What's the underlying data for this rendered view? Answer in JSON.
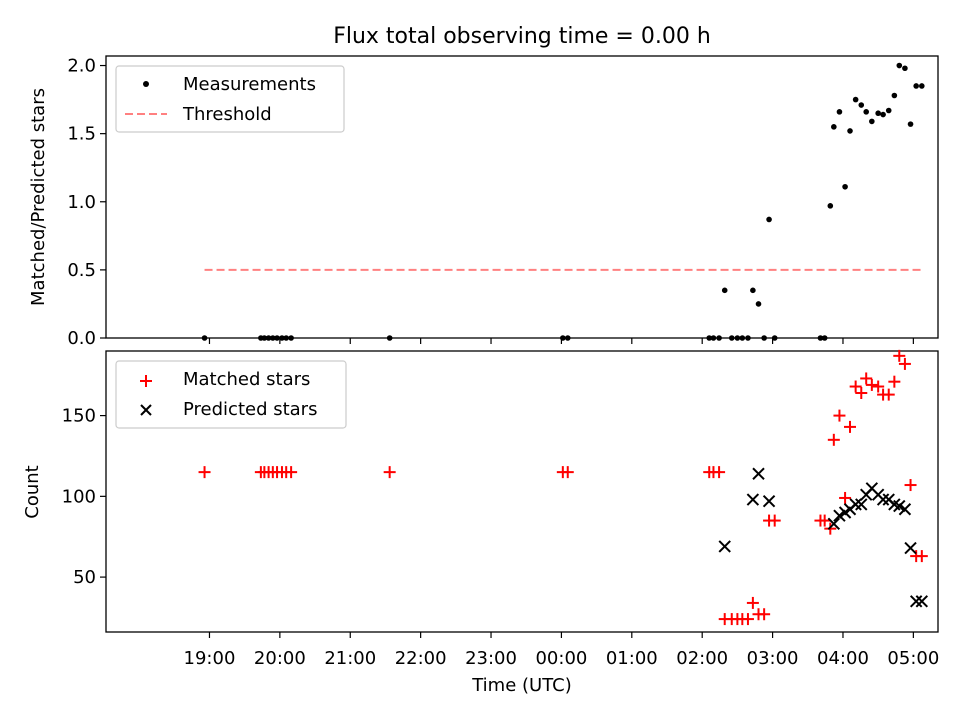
{
  "chart_data": {
    "type": "scatter",
    "title": "Flux total observing time = 0.00 h",
    "xlabel": "Time (UTC)",
    "x_unit": "hours since 18:00 UTC",
    "xlim": [
      -0.47,
      11.35
    ],
    "xticks": [
      {
        "value": 1,
        "label": "19:00"
      },
      {
        "value": 2,
        "label": "20:00"
      },
      {
        "value": 3,
        "label": "21:00"
      },
      {
        "value": 4,
        "label": "22:00"
      },
      {
        "value": 5,
        "label": "23:00"
      },
      {
        "value": 6,
        "label": "00:00"
      },
      {
        "value": 7,
        "label": "01:00"
      },
      {
        "value": 8,
        "label": "02:00"
      },
      {
        "value": 9,
        "label": "03:00"
      },
      {
        "value": 10,
        "label": "04:00"
      },
      {
        "value": 11,
        "label": "05:00"
      }
    ],
    "panels": [
      {
        "ylabel": "Matched/Predicted stars",
        "ylim": [
          0,
          2.07
        ],
        "yticks": [
          {
            "value": 0.0,
            "label": "0.0"
          },
          {
            "value": 0.5,
            "label": "0.5"
          },
          {
            "value": 1.0,
            "label": "1.0"
          },
          {
            "value": 1.5,
            "label": "1.5"
          },
          {
            "value": 2.0,
            "label": "2.0"
          }
        ],
        "legend_position": "top-left",
        "series": [
          {
            "name": "Measurements",
            "marker": "dot",
            "color": "#000000",
            "x": [
              0.93,
              1.73,
              1.78,
              1.84,
              1.9,
              1.96,
              2.03,
              2.09,
              2.16,
              3.56,
              6.02,
              6.09,
              8.1,
              8.16,
              8.24,
              8.32,
              8.42,
              8.5,
              8.57,
              8.65,
              8.72,
              8.8,
              8.88,
              8.95,
              9.03,
              9.68,
              9.74,
              9.82,
              9.87,
              9.95,
              10.03,
              10.1,
              10.18,
              10.26,
              10.33,
              10.41,
              10.5,
              10.57,
              10.65,
              10.73,
              10.8,
              10.88,
              10.96,
              11.04,
              11.12
            ],
            "y": [
              0.0,
              0.0,
              0.0,
              0.0,
              0.0,
              0.0,
              0.0,
              0.0,
              0.0,
              0.0,
              0.0,
              0.0,
              0.0,
              0.0,
              0.0,
              0.35,
              0.0,
              0.0,
              0.0,
              0.0,
              0.35,
              0.25,
              0.0,
              0.87,
              0.0,
              0.0,
              0.0,
              0.97,
              1.55,
              1.66,
              1.11,
              1.52,
              1.75,
              1.71,
              1.66,
              1.59,
              1.65,
              1.64,
              1.67,
              1.78,
              2.0,
              1.98,
              1.57,
              1.85,
              1.85
            ]
          },
          {
            "name": "Threshold",
            "style": "dashed-line",
            "color": "#ff8080",
            "x": [
              0.93,
              11.12
            ],
            "y": [
              0.5,
              0.5
            ]
          }
        ]
      },
      {
        "ylabel": "Count",
        "ylim": [
          16,
          190
        ],
        "yticks": [
          {
            "value": 50,
            "label": "50"
          },
          {
            "value": 100,
            "label": "100"
          },
          {
            "value": 150,
            "label": "150"
          }
        ],
        "legend_position": "top-left",
        "series": [
          {
            "name": "Matched stars",
            "marker": "plus",
            "color": "#ff0000",
            "x": [
              0.93,
              1.73,
              1.78,
              1.84,
              1.9,
              1.96,
              2.03,
              2.09,
              2.16,
              3.56,
              6.02,
              6.09,
              8.1,
              8.16,
              8.24,
              8.32,
              8.42,
              8.5,
              8.57,
              8.65,
              8.72,
              8.8,
              8.88,
              8.95,
              9.03,
              9.68,
              9.74,
              9.82,
              9.87,
              9.95,
              10.03,
              10.1,
              10.18,
              10.26,
              10.33,
              10.41,
              10.5,
              10.57,
              10.65,
              10.73,
              10.8,
              10.88,
              10.96,
              11.04,
              11.12
            ],
            "y": [
              115,
              115,
              115,
              115,
              115,
              115,
              115,
              115,
              115,
              115,
              115,
              115,
              115,
              115,
              115,
              24,
              24,
              24,
              24,
              24,
              34,
              27,
              27,
              85,
              85,
              85,
              85,
              80,
              135,
              150,
              99,
              143,
              168,
              164,
              173,
              169,
              168,
              163,
              163,
              171,
              187,
              182,
              107,
              63,
              63
            ]
          },
          {
            "name": "Predicted stars",
            "marker": "x",
            "color": "#000000",
            "x": [
              8.32,
              8.72,
              8.8,
              8.95,
              9.87,
              9.95,
              10.03,
              10.1,
              10.18,
              10.26,
              10.33,
              10.41,
              10.5,
              10.57,
              10.65,
              10.73,
              10.8,
              10.88,
              10.96,
              11.04,
              11.12
            ],
            "y": [
              69,
              98,
              114,
              97,
              83,
              88,
              90,
              92,
              95,
              95,
              101,
              105,
              101,
              98,
              98,
              95,
              94,
              92,
              68,
              35,
              35
            ]
          }
        ]
      }
    ]
  }
}
